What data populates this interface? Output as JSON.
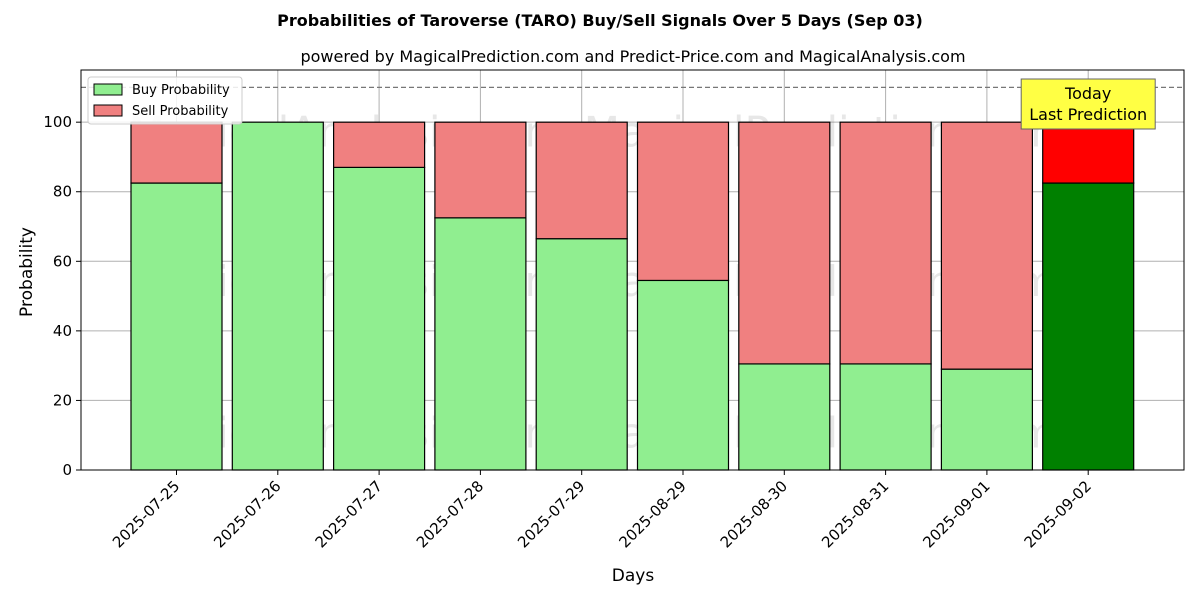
{
  "chart_data": {
    "type": "bar",
    "stacked": true,
    "title": "Probabilities of Taroverse (TARO) Buy/Sell Signals Over 5 Days (Sep 03)",
    "subtitle": "powered by MagicalPrediction.com and Predict-Price.com and MagicalAnalysis.com",
    "xlabel": "Days",
    "ylabel": "Probability",
    "ylim": [
      0,
      115
    ],
    "yticks": [
      0,
      20,
      40,
      60,
      80,
      100
    ],
    "grid": true,
    "legend_position": "top-left",
    "categories": [
      "2025-07-25",
      "2025-07-26",
      "2025-07-27",
      "2025-07-28",
      "2025-07-29",
      "2025-08-29",
      "2025-08-30",
      "2025-08-31",
      "2025-09-01",
      "2025-09-02"
    ],
    "series": [
      {
        "name": "Buy Probability",
        "color": "#90ee90",
        "highlight_color": "#008000",
        "values": [
          82.5,
          100,
          87,
          72.5,
          66.5,
          54.5,
          30.5,
          30.5,
          29,
          82.5
        ]
      },
      {
        "name": "Sell Probability",
        "color": "#f08080",
        "highlight_color": "#ff0000",
        "values": [
          17.5,
          0,
          13,
          27.5,
          33.5,
          45.5,
          69.5,
          69.5,
          71,
          17.5
        ]
      }
    ],
    "reference_line": {
      "value": 110,
      "style": "dashed"
    },
    "annotation": {
      "lines": [
        "Today",
        "Last Prediction"
      ],
      "category_index": 9,
      "background": "#ffff44"
    },
    "watermarks": [
      "MagicalAnalysis.com",
      "MagicalPrediction.com"
    ]
  }
}
